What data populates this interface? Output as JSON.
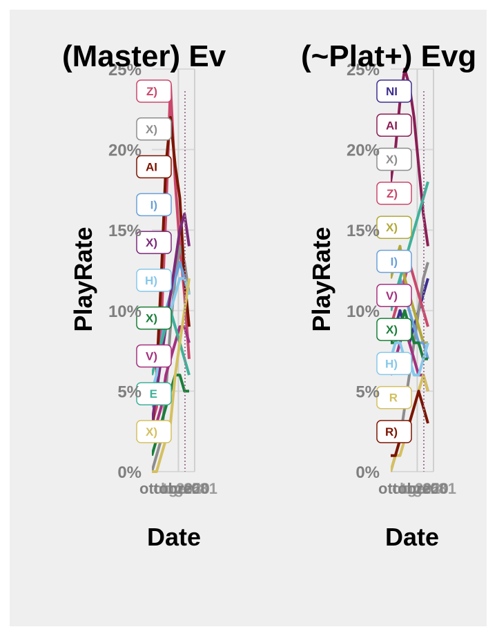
{
  "chart_data": [
    {
      "type": "line",
      "title": "(Master) Ev",
      "xlabel": "Date",
      "ylabel": "PlayRate",
      "ylim": [
        0,
        25
      ],
      "y_ticks": [
        "0%",
        "5%",
        "10%",
        "15%",
        "20%",
        "25%"
      ],
      "x_tick_overlap_text": "ottobre",
      "x_tick_labels": [
        "ott",
        "lug",
        "gen",
        "2020",
        "2501",
        "08"
      ],
      "grid": true,
      "series": [
        {
          "label": "Z)",
          "color": "#c9486b",
          "values": [
            3,
            4,
            9,
            16,
            24,
            18,
            14,
            11,
            7
          ]
        },
        {
          "label": "X)",
          "color": "#8d8d8d",
          "values": [
            0,
            1,
            2,
            5,
            9,
            12,
            14,
            13,
            11
          ]
        },
        {
          "label": "AI",
          "color": "#7a1500",
          "values": [
            2,
            6,
            12,
            19,
            22,
            19,
            17,
            12,
            9
          ]
        },
        {
          "label": "I)",
          "color": "#6aa0d8",
          "values": [
            4,
            6,
            8,
            10,
            11,
            12,
            13,
            12,
            11
          ]
        },
        {
          "label": "X)",
          "color": "#7b2a78",
          "values": [
            3,
            5,
            7,
            9,
            11,
            13,
            15,
            16,
            14
          ]
        },
        {
          "label": "H)",
          "color": "#87c8ea",
          "values": [
            5,
            6,
            8,
            9,
            10,
            11,
            12,
            12,
            11
          ]
        },
        {
          "label": "X)",
          "color": "#1a7e3a",
          "values": [
            1,
            2,
            3,
            4,
            5,
            6,
            6,
            5,
            5
          ]
        },
        {
          "label": "V)",
          "color": "#a4307f",
          "values": [
            2,
            3,
            4,
            6,
            7,
            8,
            9,
            9,
            8
          ]
        },
        {
          "label": "E",
          "color": "#3fb19a",
          "values": [
            6,
            7,
            8,
            9,
            10,
            9,
            8,
            7,
            6
          ]
        },
        {
          "label": "X)",
          "color": "#d4c060",
          "values": [
            0,
            0,
            1,
            2,
            3,
            6,
            8,
            10,
            12
          ]
        }
      ]
    },
    {
      "type": "line",
      "title": "(~Plat+) Evg",
      "xlabel": "Date",
      "ylabel": "PlayRate",
      "ylim": [
        0,
        25
      ],
      "y_ticks": [
        "0%",
        "5%",
        "10%",
        "15%",
        "20%",
        "25%"
      ],
      "x_tick_overlap_text": "ottobre",
      "x_tick_labels": [
        "ott",
        "lug",
        "gen",
        "2020",
        "2501",
        "08"
      ],
      "grid": true,
      "series": [
        {
          "label": "NI",
          "color": "#3d2f8f",
          "values": [
            8,
            9,
            10,
            9,
            8,
            9,
            10,
            11,
            12
          ]
        },
        {
          "label": "AI",
          "color": "#8a1e55",
          "values": [
            18,
            20,
            23,
            25,
            24,
            22,
            19,
            16,
            14
          ]
        },
        {
          "label": "X)",
          "color": "#8d8d8d",
          "values": [
            0,
            1,
            2,
            4,
            6,
            8,
            10,
            12,
            13
          ]
        },
        {
          "label": "Z)",
          "color": "#c9486b",
          "values": [
            9,
            10,
            11,
            12,
            13,
            12,
            11,
            10,
            9
          ]
        },
        {
          "label": "X)",
          "color": "#b2a83a",
          "values": [
            12,
            13,
            14,
            12,
            11,
            10,
            9,
            8,
            8
          ]
        },
        {
          "label": "I)",
          "color": "#6aa0d8",
          "values": [
            10,
            11,
            12,
            11,
            10,
            9,
            8,
            8,
            7
          ]
        },
        {
          "label": "V)",
          "color": "#a4307f",
          "values": [
            6,
            7,
            8,
            9,
            8,
            7,
            6,
            6,
            5
          ]
        },
        {
          "label": "X)",
          "color": "#1a7e3a",
          "values": [
            8,
            8,
            9,
            10,
            9,
            8,
            8,
            7,
            7
          ]
        },
        {
          "label": "H)",
          "color": "#87c8ea",
          "values": [
            7,
            8,
            8,
            7,
            7,
            6,
            6,
            7,
            8
          ]
        },
        {
          "label": "R",
          "color": "#d4c060",
          "values": [
            0,
            1,
            1,
            2,
            3,
            4,
            5,
            6,
            5
          ]
        },
        {
          "label": "R)",
          "color": "#7a1500",
          "values": [
            1,
            1,
            2,
            2,
            3,
            4,
            5,
            4,
            3
          ]
        },
        {
          "label": "",
          "color": "#3fb19a",
          "values": [
            10,
            11,
            12,
            13,
            14,
            15,
            16,
            17,
            18
          ]
        }
      ]
    }
  ]
}
